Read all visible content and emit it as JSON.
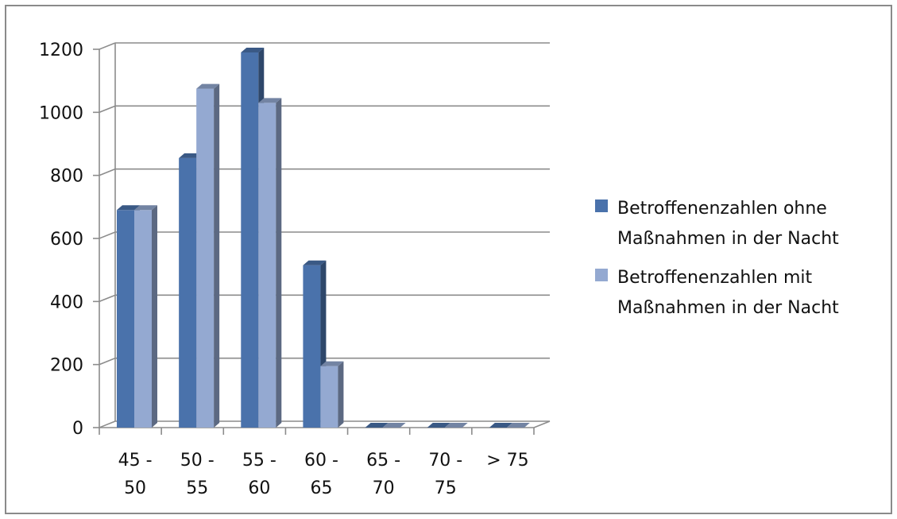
{
  "chart_data": {
    "type": "bar",
    "categories": [
      [
        "45 -",
        "50"
      ],
      [
        "50 -",
        "55"
      ],
      [
        "55 -",
        "60"
      ],
      [
        "60 -",
        "65"
      ],
      [
        "65 -",
        "70"
      ],
      [
        "70 -",
        "75"
      ],
      [
        "> 75"
      ]
    ],
    "series": [
      {
        "name_lines": [
          "Betroffenenzahlen ohne",
          "Maßnahmen in der Nacht"
        ],
        "values": [
          690,
          855,
          1190,
          515,
          0,
          0,
          0
        ],
        "color": "#4a72ab"
      },
      {
        "name_lines": [
          "Betroffenenzahlen mit",
          "Maßnahmen in der Nacht"
        ],
        "values": [
          690,
          1075,
          1030,
          195,
          0,
          0,
          0
        ],
        "color": "#94a9d1"
      }
    ],
    "ylim": [
      0,
      1200
    ],
    "yticks": [
      0,
      200,
      400,
      600,
      800,
      1000,
      1200
    ],
    "grid": true,
    "legend": "right",
    "style": "3d-clustered-column"
  }
}
